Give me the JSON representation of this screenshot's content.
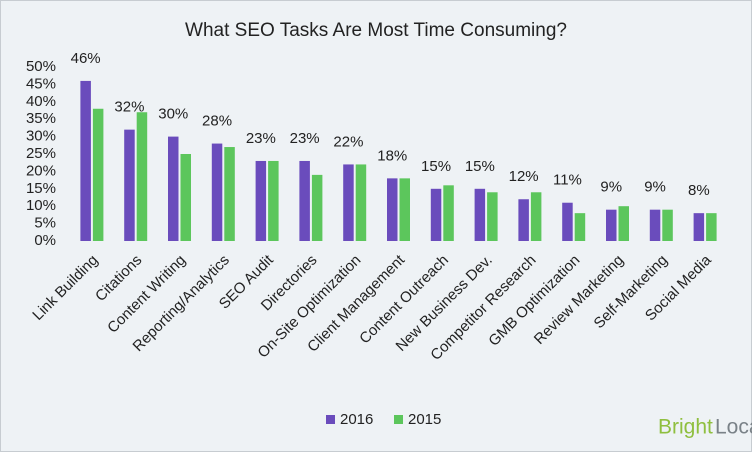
{
  "chart_data": {
    "type": "bar",
    "title": "What SEO Tasks Are Most Time Consuming?",
    "categories": [
      "Link Building",
      "Citations",
      "Content Writing",
      "Reporting/Analytics",
      "SEO Audit",
      "Directories",
      "On-Site Optimization",
      "Client Management",
      "Content Outreach",
      "New Business Dev.",
      "Competitor Research",
      "GMB Optimization",
      "Review Marketing",
      "Self-Marketing",
      "Social Media"
    ],
    "series": [
      {
        "name": "2016",
        "color": "#6a4cbc",
        "values": [
          46,
          32,
          30,
          28,
          23,
          23,
          22,
          18,
          15,
          15,
          12,
          11,
          9,
          9,
          8
        ],
        "value_labels": [
          "46%",
          "32%",
          "30%",
          "28%",
          "23%",
          "23%",
          "22%",
          "18%",
          "15%",
          "15%",
          "12%",
          "11%",
          "9%",
          "9%",
          "8%"
        ]
      },
      {
        "name": "2015",
        "color": "#5cc65c",
        "values": [
          38,
          37,
          25,
          27,
          23,
          19,
          22,
          18,
          16,
          14,
          14,
          8,
          10,
          9,
          8
        ]
      }
    ],
    "ylim": [
      0,
      50
    ],
    "yticks": [
      {
        "value": 0,
        "label": "0%"
      },
      {
        "value": 5,
        "label": "5%"
      },
      {
        "value": 10,
        "label": "10%"
      },
      {
        "value": 15,
        "label": "15%"
      },
      {
        "value": 20,
        "label": "20%"
      },
      {
        "value": 25,
        "label": "25%"
      },
      {
        "value": 30,
        "label": "30%"
      },
      {
        "value": 35,
        "label": "35%"
      },
      {
        "value": 40,
        "label": "40%"
      },
      {
        "value": 45,
        "label": "45%"
      },
      {
        "value": 50,
        "label": "50%"
      }
    ],
    "legend": "bottom"
  },
  "logo": {
    "first": "Bright",
    "second": "Local"
  }
}
